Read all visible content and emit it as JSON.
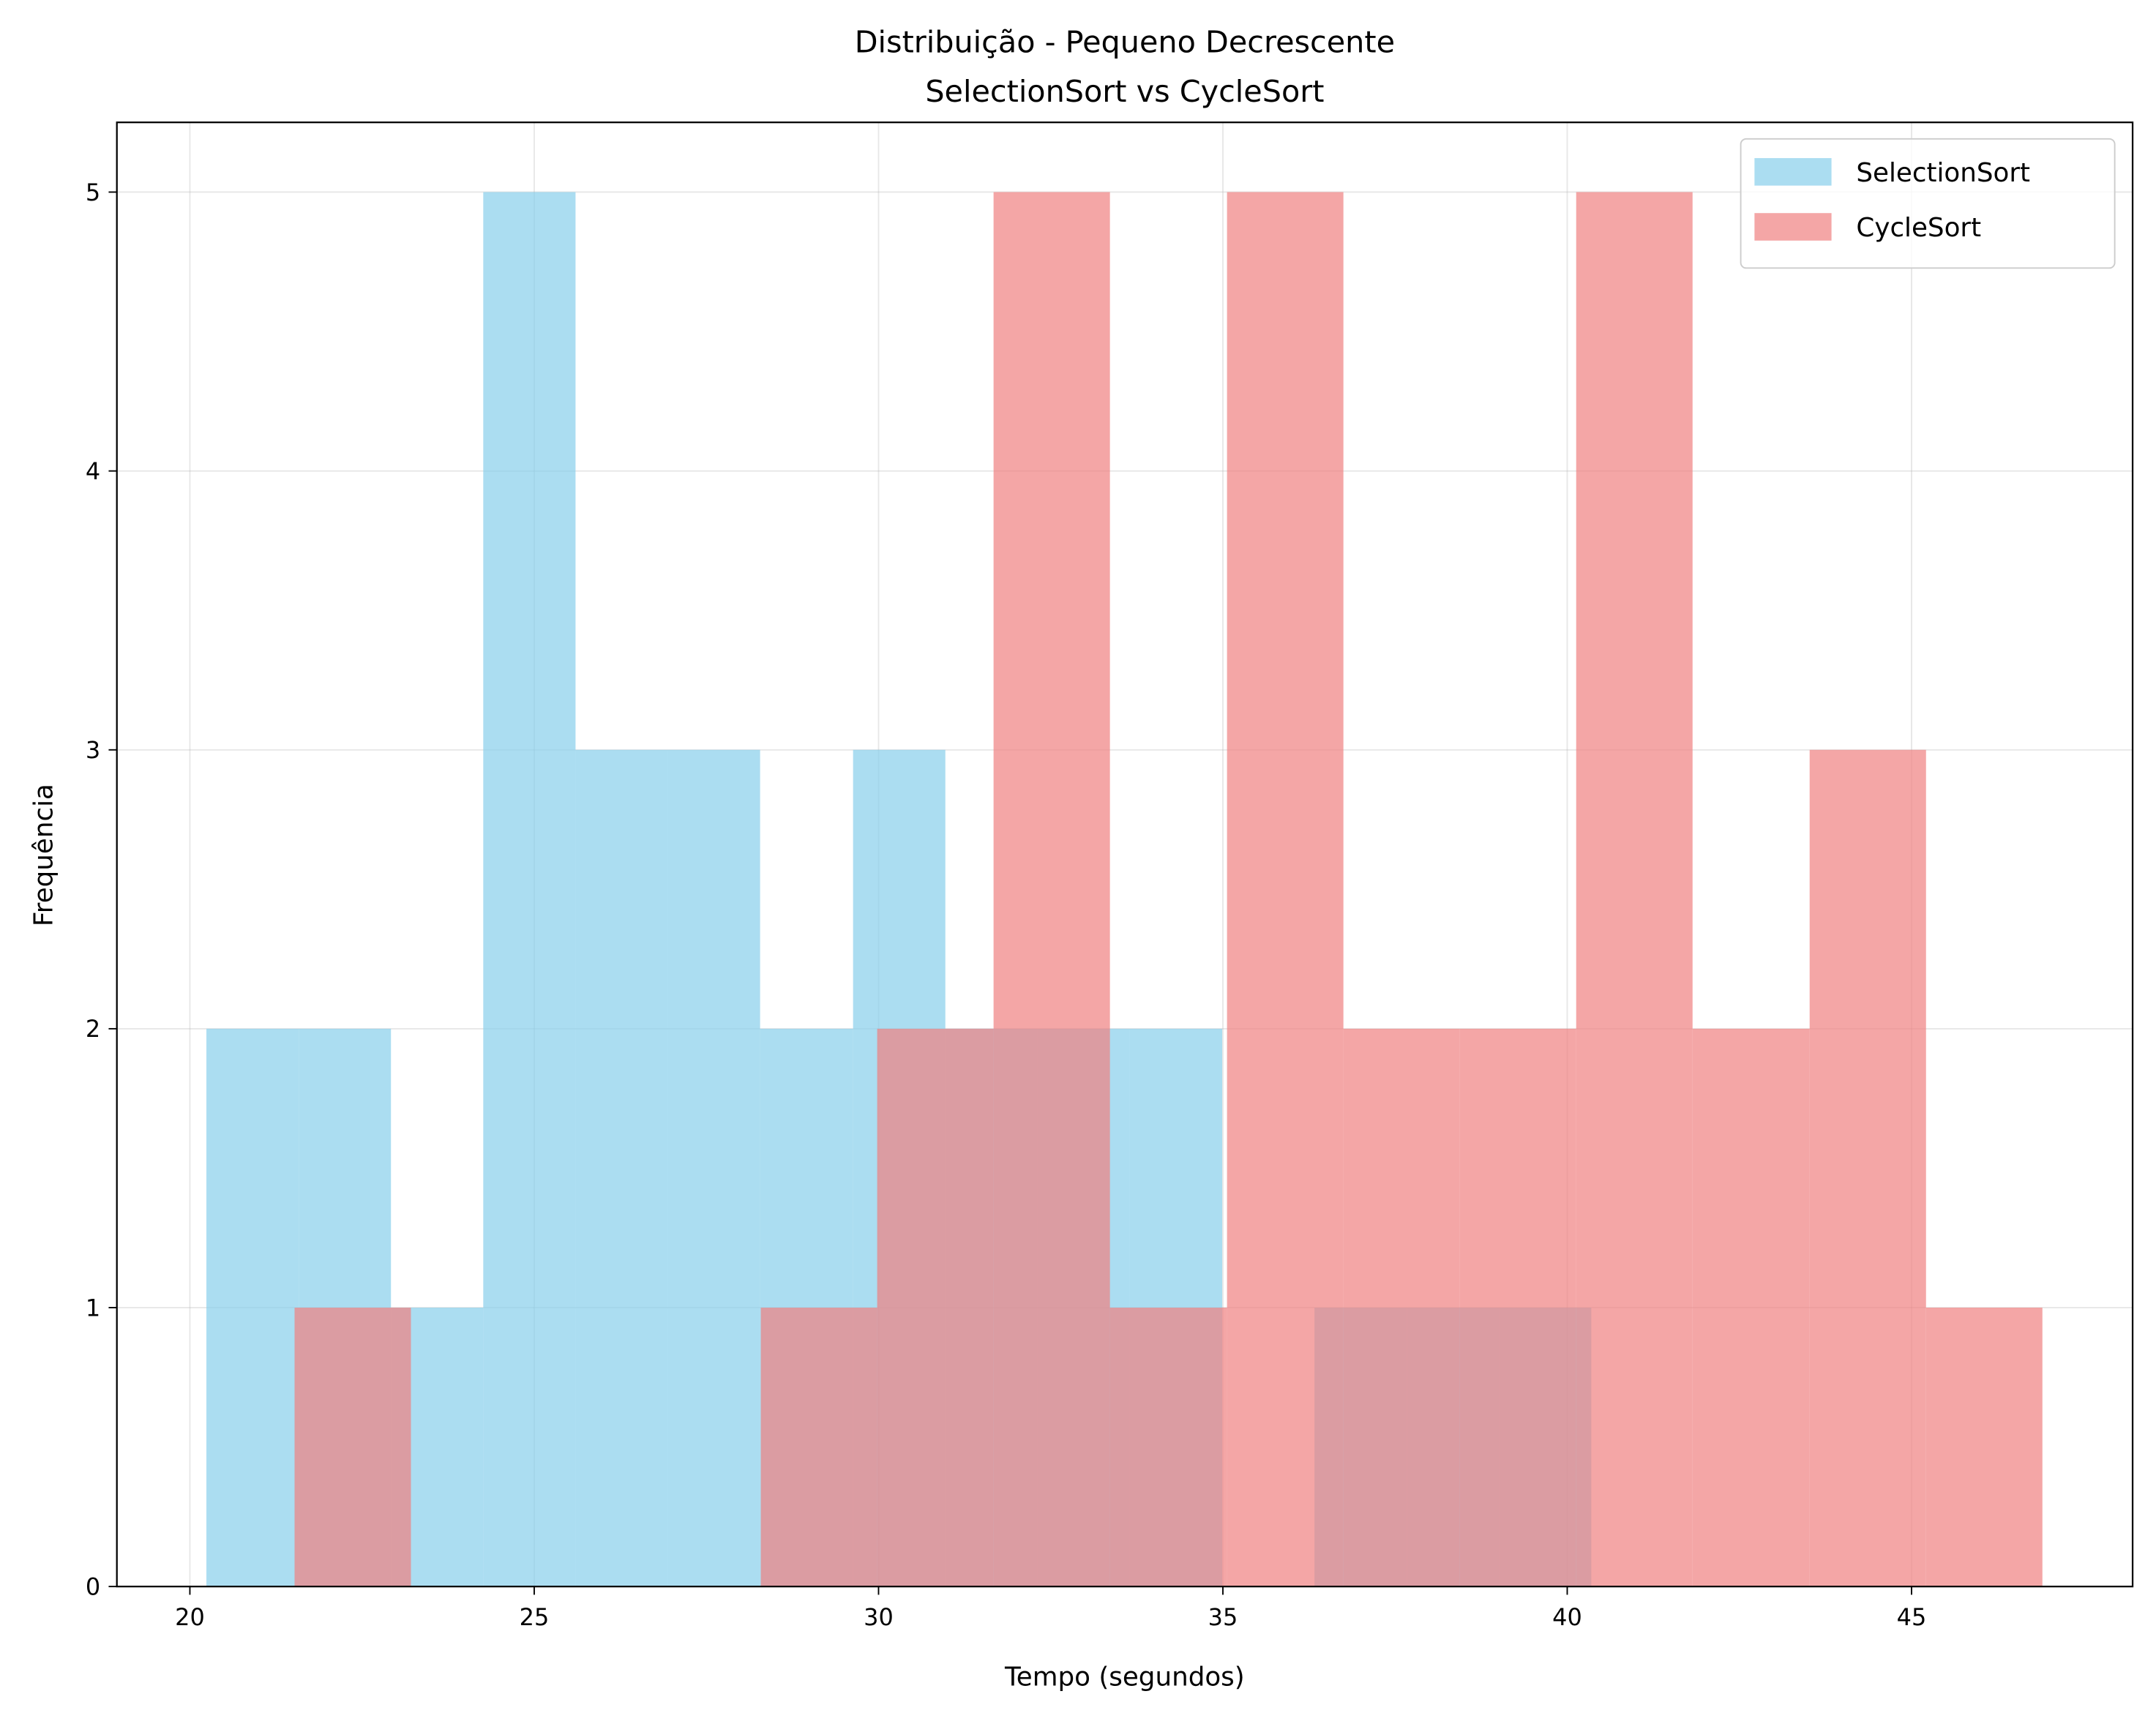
{
  "chart_data": {
    "type": "histogram",
    "title": "Distribuição - Pequeno Decrescente",
    "subtitle": "SelectionSort vs CycleSort",
    "xlabel": "Tempo (segundos)",
    "ylabel": "Frequência",
    "xlim": [
      18.94,
      48.21
    ],
    "ylim": [
      0,
      5.25
    ],
    "xticks": [
      20,
      25,
      30,
      35,
      40,
      45
    ],
    "yticks": [
      0,
      1,
      2,
      3,
      4,
      5
    ],
    "grid": true,
    "legend": "upper right",
    "alpha": 0.7,
    "series": [
      {
        "name": "SelectionSort",
        "color": "#87ceeb",
        "bins": [
          20.24,
          21.58,
          22.92,
          24.26,
          25.6,
          26.94,
          28.28,
          29.63,
          30.97,
          32.31,
          33.65,
          34.99,
          36.33,
          37.67,
          39.01,
          40.35
        ],
        "values": [
          2,
          2,
          1,
          5,
          3,
          3,
          2,
          3,
          2,
          2,
          2,
          0,
          1,
          1,
          1
        ]
      },
      {
        "name": "CycleSort",
        "color": "#f08080",
        "bins": [
          21.52,
          23.21,
          24.9,
          26.6,
          28.29,
          29.98,
          31.67,
          33.36,
          35.06,
          36.75,
          38.44,
          40.13,
          41.82,
          43.52,
          45.21,
          46.9
        ],
        "values": [
          1,
          0,
          0,
          0,
          1,
          2,
          5,
          1,
          5,
          2,
          2,
          5,
          2,
          3,
          1
        ]
      }
    ]
  }
}
